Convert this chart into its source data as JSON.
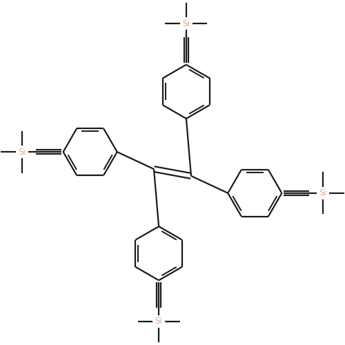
{
  "bg_color": "#ffffff",
  "bond_color": "#1a1a1a",
  "si_color": "#e8a87c",
  "lw": 1.6,
  "figsize": [
    5.0,
    5.0
  ],
  "dpi": 100,
  "xlim": [
    -3.5,
    3.5
  ],
  "ylim": [
    -3.5,
    3.5
  ],
  "ring_r": 0.55,
  "triple_sep": 0.045,
  "dbl_sep": 0.055,
  "dbl_shrink": 0.1,
  "tbl": 0.52,
  "si_arm": 0.3,
  "si_font": 8.5
}
